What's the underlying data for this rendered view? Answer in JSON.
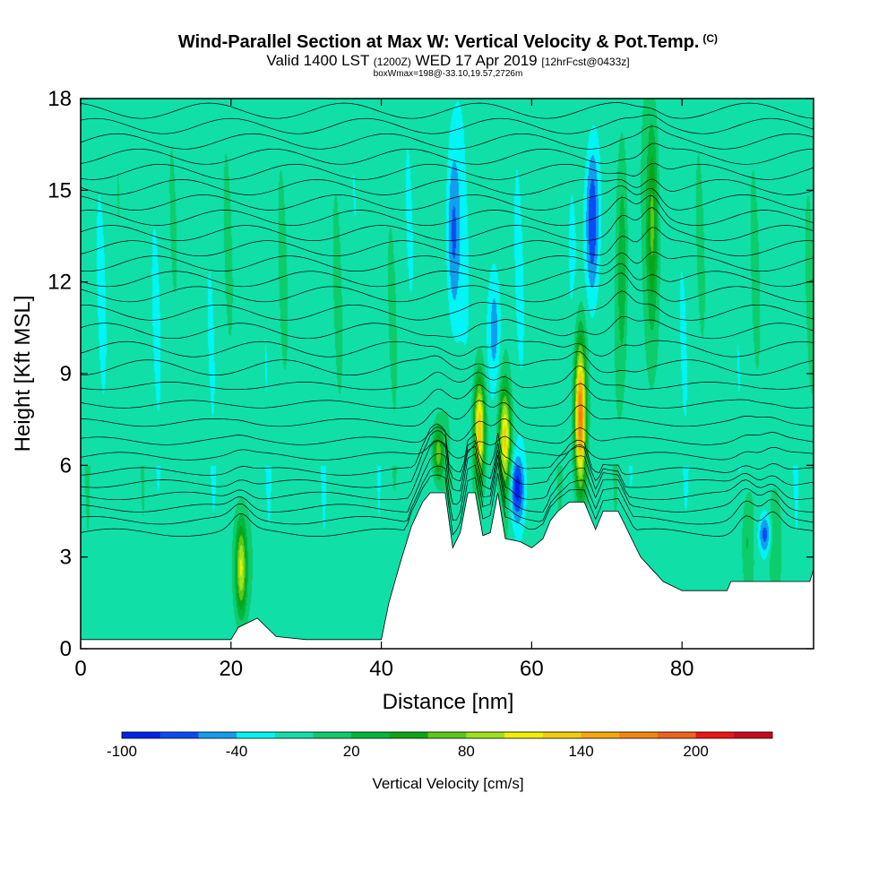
{
  "header": {
    "title": "Wind-Parallel Section at Max W: Vertical Velocity & Pot.Temp.",
    "title_mark": "(C)",
    "valid_prefix": "Valid 1400 LST",
    "valid_utc": "(1200Z)",
    "valid_date": "WED 17 Apr 2019",
    "forecast": "[12hrFcst@0433z]",
    "box_info": "boxWmax=198@-33.10,19.57,2726m"
  },
  "chart_data": {
    "type": "heatmap",
    "xlabel": "Distance [nm]",
    "ylabel": "Height [Kft MSL]",
    "xlim": [
      0,
      97.5
    ],
    "ylim": [
      0,
      18
    ],
    "xticks": [
      0,
      20,
      40,
      60,
      80
    ],
    "yticks": [
      0,
      3,
      6,
      9,
      12,
      15,
      18
    ],
    "colorbar": {
      "label": "Vertical Velocity [cm/s]",
      "ticks": [
        -100,
        -40,
        20,
        80,
        140,
        200
      ],
      "levels": [
        -100,
        -80,
        -60,
        -40,
        -20,
        0,
        20,
        40,
        60,
        80,
        100,
        120,
        140,
        160,
        180,
        200,
        220,
        240
      ],
      "colors": [
        "#0022ee",
        "#0a4cf4",
        "#139dee",
        "#00f5f5",
        "#11dfa8",
        "#0ccc6c",
        "#00b63c",
        "#0aa618",
        "#5cc81a",
        "#9ee21e",
        "#f0f000",
        "#f2cd0a",
        "#f6a80c",
        "#f4860e",
        "#f1621a",
        "#ee1515",
        "#cc0820"
      ]
    },
    "background_value": -10,
    "updrafts": [
      {
        "x": 21.3,
        "ybot": 0.8,
        "ytop": 4.5,
        "peak": 120
      },
      {
        "x": 47.5,
        "ybot": 5.3,
        "ytop": 7.5,
        "peak": 85
      },
      {
        "x": 53.0,
        "ybot": 5.2,
        "ytop": 9.2,
        "peak": 150
      },
      {
        "x": 56.4,
        "ybot": 5.0,
        "ytop": 8.8,
        "peak": 130
      },
      {
        "x": 66.4,
        "ybot": 4.8,
        "ytop": 10.5,
        "peak": 198
      },
      {
        "x": 72.0,
        "ybot": 8.0,
        "ytop": 17.0,
        "peak": 55
      },
      {
        "x": 76.0,
        "ybot": 10.0,
        "ytop": 18.0,
        "peak": 70
      },
      {
        "x": 88.5,
        "ybot": 1.5,
        "ytop": 5.5,
        "peak": 35
      },
      {
        "x": 92.0,
        "ybot": 1.5,
        "ytop": 5.5,
        "peak": 30
      }
    ],
    "downdrafts": [
      {
        "x": 58.0,
        "ybot": 4.0,
        "ytop": 6.5,
        "peak": -75
      },
      {
        "x": 68.0,
        "ybot": 11.0,
        "ytop": 17.0,
        "peak": -80
      },
      {
        "x": 49.5,
        "ybot": 10.0,
        "ytop": 17.0,
        "peak": -55
      },
      {
        "x": 55.0,
        "ybot": 8.0,
        "ytop": 13.0,
        "peak": -45
      },
      {
        "x": 91.0,
        "ybot": 3.0,
        "ytop": 4.5,
        "peak": -60
      }
    ],
    "terrain": [
      {
        "x": 0,
        "h": 0.3
      },
      {
        "x": 20,
        "h": 0.3
      },
      {
        "x": 21,
        "h": 0.7
      },
      {
        "x": 23.5,
        "h": 1.0
      },
      {
        "x": 26,
        "h": 0.4
      },
      {
        "x": 30,
        "h": 0.3
      },
      {
        "x": 40,
        "h": 0.3
      },
      {
        "x": 41,
        "h": 1.5
      },
      {
        "x": 42.5,
        "h": 2.8
      },
      {
        "x": 44,
        "h": 4.0
      },
      {
        "x": 45.5,
        "h": 4.8
      },
      {
        "x": 46.5,
        "h": 5.1
      },
      {
        "x": 48.5,
        "h": 5.1
      },
      {
        "x": 49.5,
        "h": 3.3
      },
      {
        "x": 50.5,
        "h": 3.8
      },
      {
        "x": 51.5,
        "h": 5.1
      },
      {
        "x": 52.5,
        "h": 5.1
      },
      {
        "x": 53.5,
        "h": 3.7
      },
      {
        "x": 54.5,
        "h": 3.8
      },
      {
        "x": 55.5,
        "h": 5.1
      },
      {
        "x": 56.5,
        "h": 3.6
      },
      {
        "x": 58.5,
        "h": 3.5
      },
      {
        "x": 60,
        "h": 3.3
      },
      {
        "x": 61.5,
        "h": 3.6
      },
      {
        "x": 62.5,
        "h": 4.2
      },
      {
        "x": 63.5,
        "h": 4.5
      },
      {
        "x": 65,
        "h": 4.8
      },
      {
        "x": 67,
        "h": 4.8
      },
      {
        "x": 68.5,
        "h": 3.9
      },
      {
        "x": 69.5,
        "h": 4.5
      },
      {
        "x": 71.5,
        "h": 4.5
      },
      {
        "x": 72.5,
        "h": 4.0
      },
      {
        "x": 73.5,
        "h": 3.5
      },
      {
        "x": 74.5,
        "h": 3.0
      },
      {
        "x": 76,
        "h": 2.6
      },
      {
        "x": 77.5,
        "h": 2.2
      },
      {
        "x": 80,
        "h": 1.9
      },
      {
        "x": 86,
        "h": 1.9
      },
      {
        "x": 86.5,
        "h": 2.2
      },
      {
        "x": 97,
        "h": 2.2
      },
      {
        "x": 97.5,
        "h": 2.6
      }
    ],
    "theta_isolines_kft": [
      3.8,
      4.2,
      4.6,
      5.0,
      5.4,
      5.8,
      6.3,
      6.8,
      7.4,
      8.0,
      8.6,
      9.2,
      9.8,
      10.4,
      11.0,
      11.6,
      12.1,
      12.6,
      13.1,
      13.6,
      14.1,
      14.6,
      15.1,
      15.6,
      16.1,
      16.6,
      17.1,
      17.6
    ]
  }
}
